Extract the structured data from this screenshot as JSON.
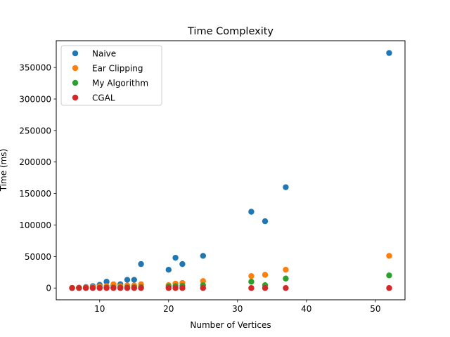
{
  "chart_data": {
    "type": "scatter",
    "title": "Time Complexity",
    "xlabel": "Number of Vertices",
    "ylabel": "Time (ms)",
    "xlim": [
      3.7,
      54.3
    ],
    "ylim": [
      -18700,
      392500
    ],
    "xticks": [
      10,
      20,
      30,
      40,
      50
    ],
    "yticks": [
      0,
      50000,
      100000,
      150000,
      200000,
      250000,
      300000,
      350000
    ],
    "grid": false,
    "legend_position": "top-left",
    "series": [
      {
        "name": "Naive",
        "color": "#1f77b4",
        "points": [
          [
            6,
            200
          ],
          [
            7,
            500
          ],
          [
            8,
            1500
          ],
          [
            9,
            3000
          ],
          [
            10,
            5000
          ],
          [
            11,
            10000
          ],
          [
            12,
            4000
          ],
          [
            13,
            6000
          ],
          [
            14,
            13000
          ],
          [
            15,
            13000
          ],
          [
            16,
            38000
          ],
          [
            20,
            29000
          ],
          [
            21,
            48000
          ],
          [
            22,
            38000
          ],
          [
            25,
            51000
          ],
          [
            32,
            121000
          ],
          [
            34,
            106000
          ],
          [
            37,
            160000
          ],
          [
            52,
            373000
          ]
        ]
      },
      {
        "name": "Ear Clipping",
        "color": "#ff7f0e",
        "points": [
          [
            6,
            100
          ],
          [
            7,
            300
          ],
          [
            8,
            800
          ],
          [
            9,
            1500
          ],
          [
            10,
            2500
          ],
          [
            11,
            3000
          ],
          [
            12,
            6000
          ],
          [
            13,
            3000
          ],
          [
            14,
            4000
          ],
          [
            15,
            4000
          ],
          [
            16,
            6000
          ],
          [
            20,
            4500
          ],
          [
            21,
            7000
          ],
          [
            22,
            8000
          ],
          [
            25,
            11000
          ],
          [
            32,
            19000
          ],
          [
            34,
            21000
          ],
          [
            37,
            29000
          ],
          [
            52,
            51000
          ]
        ]
      },
      {
        "name": "My Algorithm",
        "color": "#2ca02c",
        "points": [
          [
            6,
            50
          ],
          [
            7,
            100
          ],
          [
            8,
            200
          ],
          [
            9,
            300
          ],
          [
            10,
            500
          ],
          [
            11,
            700
          ],
          [
            12,
            900
          ],
          [
            13,
            800
          ],
          [
            14,
            1000
          ],
          [
            15,
            1200
          ],
          [
            16,
            1500
          ],
          [
            20,
            2500
          ],
          [
            21,
            3000
          ],
          [
            22,
            3500
          ],
          [
            25,
            4500
          ],
          [
            32,
            10000
          ],
          [
            34,
            4500
          ],
          [
            37,
            15000
          ],
          [
            52,
            20000
          ]
        ]
      },
      {
        "name": "CGAL",
        "color": "#d62728",
        "points": [
          [
            6,
            0
          ],
          [
            7,
            0
          ],
          [
            8,
            0
          ],
          [
            9,
            0
          ],
          [
            10,
            0
          ],
          [
            11,
            0
          ],
          [
            12,
            0
          ],
          [
            13,
            0
          ],
          [
            14,
            0
          ],
          [
            15,
            0
          ],
          [
            16,
            0
          ],
          [
            20,
            0
          ],
          [
            21,
            0
          ],
          [
            22,
            0
          ],
          [
            25,
            0
          ],
          [
            32,
            0
          ],
          [
            34,
            0
          ],
          [
            37,
            0
          ],
          [
            52,
            0
          ]
        ]
      }
    ]
  }
}
